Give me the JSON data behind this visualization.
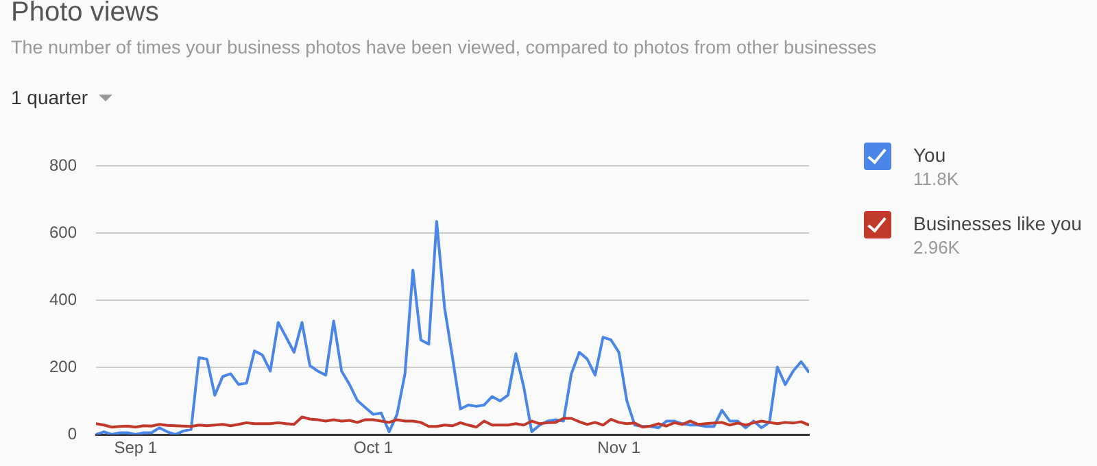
{
  "chart_data": {
    "type": "line",
    "title": "Photo views",
    "subtitle": "The number of times your business photos have been viewed, compared to photos from other businesses",
    "annotations": [
      "1 quarter",
      "11.8K",
      "2.96K"
    ],
    "x": [
      "--08-27",
      "--08-28",
      "--08-29",
      "--08-30",
      "--08-31",
      "--09-01",
      "--09-02",
      "--09-03",
      "--09-04",
      "--09-05",
      "--09-06",
      "--09-07",
      "--09-08",
      "--09-09",
      "--09-10",
      "--09-11",
      "--09-12",
      "--09-13",
      "--09-14",
      "--09-15",
      "--09-16",
      "--09-17",
      "--09-18",
      "--09-19",
      "--09-20",
      "--09-21",
      "--09-22",
      "--09-23",
      "--09-24",
      "--09-25",
      "--09-26",
      "--09-27",
      "--09-28",
      "--09-29",
      "--09-30",
      "--10-01",
      "--10-02",
      "--10-03",
      "--10-04",
      "--10-05",
      "--10-06",
      "--10-07",
      "--10-08",
      "--10-09",
      "--10-10",
      "--10-11",
      "--10-12",
      "--10-13",
      "--10-14",
      "--10-15",
      "--10-16",
      "--10-17",
      "--10-18",
      "--10-19",
      "--10-20",
      "--10-21",
      "--10-22",
      "--10-23",
      "--10-24",
      "--10-25",
      "--10-26",
      "--10-27",
      "--10-28",
      "--10-29",
      "--10-30",
      "--10-31",
      "--11-01",
      "--11-02",
      "--11-03",
      "--11-04",
      "--11-05",
      "--11-06",
      "--11-07",
      "--11-08",
      "--11-09",
      "--11-10",
      "--11-11",
      "--11-12",
      "--11-13",
      "--11-14",
      "--11-15",
      "--11-16",
      "--11-17",
      "--11-18",
      "--11-19",
      "--11-20",
      "--11-21",
      "--11-22",
      "--11-23",
      "--11-24",
      "--11-25"
    ],
    "series": [
      {
        "name": "You",
        "color": "#4a86e8",
        "values": [
          0,
          8,
          0,
          5,
          5,
          0,
          5,
          5,
          20,
          8,
          0,
          10,
          15,
          229,
          225,
          117,
          173,
          181,
          149,
          153,
          249,
          237,
          189,
          334,
          290,
          245,
          334,
          205,
          189,
          177,
          338,
          189,
          149,
          101,
          80,
          60,
          64,
          8,
          60,
          181,
          490,
          282,
          269,
          635,
          378,
          229,
          76,
          88,
          84,
          88,
          113,
          100,
          117,
          241,
          141,
          8,
          28,
          40,
          44,
          40,
          181,
          245,
          225,
          177,
          290,
          282,
          245,
          101,
          28,
          24,
          24,
          20,
          40,
          40,
          32,
          28,
          28,
          24,
          24,
          72,
          40,
          40,
          20,
          40,
          20,
          36,
          201,
          149,
          189,
          217,
          185
        ]
      },
      {
        "name": "Businesses like you",
        "color": "#c0392b",
        "values": [
          32,
          28,
          22,
          24,
          25,
          22,
          26,
          25,
          30,
          27,
          26,
          25,
          24,
          28,
          26,
          28,
          30,
          26,
          30,
          35,
          32,
          32,
          32,
          35,
          32,
          30,
          52,
          46,
          44,
          40,
          44,
          40,
          42,
          36,
          44,
          44,
          40,
          36,
          44,
          40,
          40,
          36,
          24,
          24,
          28,
          26,
          35,
          28,
          22,
          40,
          28,
          28,
          28,
          32,
          28,
          40,
          32,
          35,
          36,
          48,
          48,
          38,
          30,
          36,
          28,
          45,
          36,
          32,
          34,
          22,
          25,
          32,
          25,
          35,
          30,
          40,
          30,
          32,
          34,
          36,
          28,
          34,
          28,
          35,
          40,
          36,
          32,
          36,
          34,
          38,
          28
        ]
      }
    ],
    "xlim": [
      "--08-27",
      "--11-25"
    ],
    "xticks": [
      {
        "value": "--09-01",
        "label": "Sep 1"
      },
      {
        "value": "--10-01",
        "label": "Oct 1"
      },
      {
        "value": "--11-01",
        "label": "Nov 1"
      }
    ],
    "ylim": [
      0,
      800
    ],
    "yticks": [
      0,
      200,
      400,
      600,
      800
    ],
    "grid": "y",
    "legend": "right",
    "marker": "none",
    "line_style": "solid"
  }
}
